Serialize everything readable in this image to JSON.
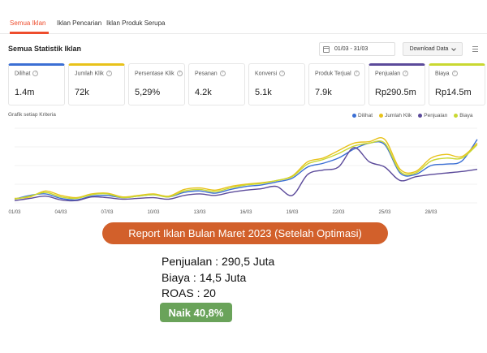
{
  "tabs": [
    {
      "label": "Semua Iklan",
      "active": true
    },
    {
      "label": "Iklan Pencarian",
      "active": false
    },
    {
      "label": "Iklan Produk Serupa",
      "active": false
    }
  ],
  "section": {
    "title": "Semua Statistik Iklan"
  },
  "toolbar": {
    "date_range": "01/03 - 31/03",
    "download_label": "Download Data"
  },
  "metrics": [
    {
      "label": "Dilihat",
      "value": "1.4m",
      "selected": true,
      "color": "#3b6fd4"
    },
    {
      "label": "Jumlah Klik",
      "value": "72k",
      "selected": true,
      "color": "#e8c21a"
    },
    {
      "label": "Persentase Klik",
      "value": "5,29%",
      "selected": false
    },
    {
      "label": "Pesanan",
      "value": "4.2k",
      "selected": false
    },
    {
      "label": "Konversi",
      "value": "5.1k",
      "selected": false
    },
    {
      "label": "Produk Terjual",
      "value": "7.9k",
      "selected": false
    },
    {
      "label": "Penjualan",
      "value": "Rp290.5m",
      "selected": true,
      "color": "#5b4a9a"
    },
    {
      "label": "Biaya",
      "value": "Rp14.5m",
      "selected": true,
      "color": "#c9d831"
    }
  ],
  "chart_data": {
    "type": "line",
    "title": "Grafik setiap Kriteria",
    "x_labels": [
      "01/03",
      "04/03",
      "07/03",
      "10/03",
      "13/03",
      "16/03",
      "19/03",
      "22/03",
      "25/03",
      "28/03"
    ],
    "x": [
      1,
      2,
      3,
      4,
      5,
      6,
      7,
      8,
      9,
      10,
      11,
      12,
      13,
      14,
      15,
      16,
      17,
      18,
      19,
      20,
      21,
      22,
      23,
      24,
      25,
      26,
      27,
      28,
      29,
      30,
      31
    ],
    "grid": true,
    "legend_position": "top-right",
    "series": [
      {
        "name": "Dilihat",
        "color": "#3b6fd4",
        "values": [
          5,
          10,
          12,
          6,
          4,
          9,
          10,
          7,
          9,
          11,
          8,
          14,
          16,
          13,
          18,
          22,
          24,
          28,
          33,
          48,
          53,
          60,
          72,
          80,
          78,
          40,
          38,
          50,
          52,
          56,
          85
        ]
      },
      {
        "name": "Jumlah Klik",
        "color": "#e8c21a",
        "values": [
          6,
          8,
          16,
          10,
          7,
          12,
          13,
          8,
          10,
          12,
          9,
          18,
          20,
          17,
          22,
          25,
          27,
          30,
          36,
          55,
          60,
          70,
          80,
          82,
          85,
          45,
          42,
          60,
          65,
          62,
          80
        ]
      },
      {
        "name": "Penjualan",
        "color": "#5b4a9a",
        "values": [
          3,
          6,
          9,
          4,
          3,
          8,
          7,
          5,
          6,
          7,
          5,
          10,
          12,
          10,
          14,
          17,
          19,
          22,
          10,
          38,
          44,
          48,
          74,
          55,
          48,
          30,
          35,
          38,
          40,
          42,
          45
        ]
      },
      {
        "name": "Biaya",
        "color": "#c9d831",
        "values": [
          5,
          9,
          14,
          8,
          6,
          11,
          12,
          7,
          9,
          11,
          8,
          16,
          18,
          15,
          20,
          24,
          26,
          30,
          35,
          52,
          58,
          66,
          76,
          80,
          80,
          42,
          40,
          56,
          60,
          60,
          78
        ]
      }
    ]
  },
  "report": {
    "banner": "Report Iklan Bulan Maret 2023 (Setelah Optimasi)",
    "lines": [
      "Penjualan : 290,5 Juta",
      "Biaya : 14,5 Juta",
      "ROAS : 20"
    ],
    "badge": "Naik 40,8%"
  }
}
